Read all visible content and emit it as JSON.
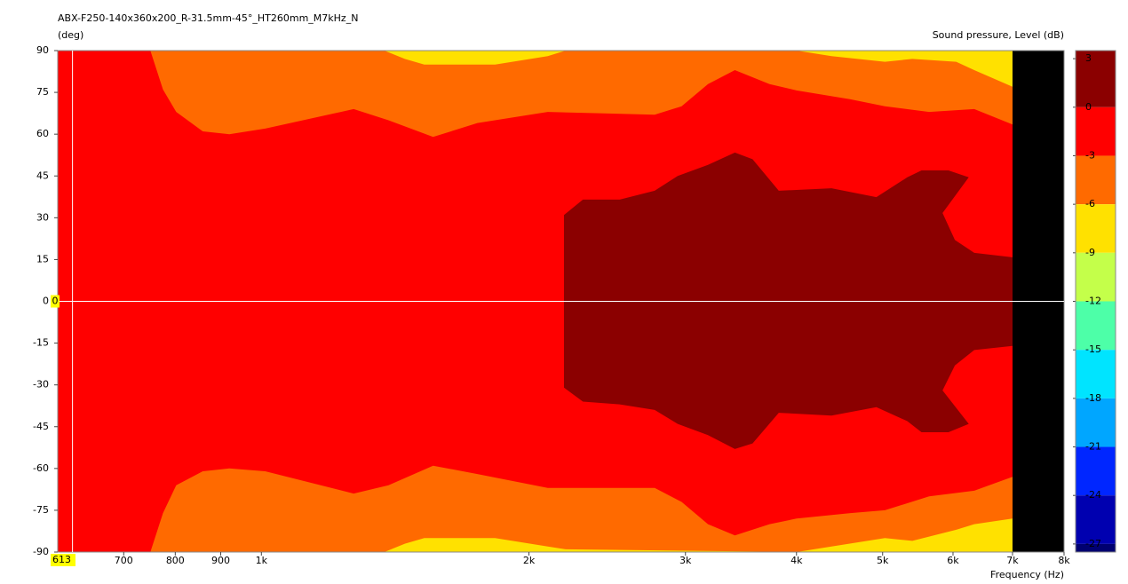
{
  "chart_data": {
    "type": "contour",
    "title": "ABX-F250-140x360x200_R-31.5mm-45°_HT260mm_M7kHz_N",
    "y_label": "(deg)",
    "x_label": "Frequency  (Hz)",
    "log_x": true,
    "xlim": [
      590,
      8000
    ],
    "xticks": [
      700,
      800,
      900,
      {
        "value": 1000,
        "label": "1k"
      },
      {
        "value": 2000,
        "label": "2k"
      },
      {
        "value": 3000,
        "label": "3k"
      },
      {
        "value": 4000,
        "label": "4k"
      },
      {
        "value": 5000,
        "label": "5k"
      },
      {
        "value": 6000,
        "label": "6k"
      },
      {
        "value": 7000,
        "label": "7k"
      },
      {
        "value": 8000,
        "label": "8k"
      }
    ],
    "ylim": [
      -90,
      90
    ],
    "yticks": [
      90,
      75,
      60,
      45,
      30,
      15,
      0,
      -15,
      -30,
      -45,
      -60,
      -75,
      -90
    ],
    "cursor": {
      "x": 613,
      "y": 0
    },
    "colorbar": {
      "title": "Sound pressure, Level  (dB)",
      "clim": [
        -27.5,
        3.5
      ],
      "ticks": [
        3,
        0,
        -3,
        -6,
        -9,
        -12,
        -15,
        -18,
        -21,
        -24,
        -27
      ],
      "colors": [
        "#8b0000",
        "#ff0000",
        "#ff6a00",
        "#ffe100",
        "#c4ff4a",
        "#4dffa8",
        "#00e4ff",
        "#00a6ff",
        "#0026ff",
        "#0000b0",
        "#000070"
      ]
    },
    "contours": [
      {
        "level": -6,
        "x": [
          590,
          1375,
          1450,
          1525,
          1832,
          2100,
          2200,
          4000,
          4380,
          5030,
          5400,
          6050,
          6340,
          7000
        ],
        "y_upper": [
          90,
          90,
          87,
          85,
          85,
          88,
          90,
          90,
          88,
          86,
          87,
          86,
          83,
          77
        ],
        "y_lower": [
          -90,
          -90,
          -87,
          -85,
          -85,
          -88,
          -89,
          -90,
          -88,
          -85,
          -86,
          -82,
          -80,
          -78
        ]
      },
      {
        "level": -3,
        "x": [
          590,
          750,
          775,
          802,
          859,
          920,
          1010,
          1270,
          1390,
          1560,
          1750,
          2100,
          2770,
          2970,
          3180,
          3410,
          3730,
          4000,
          4600,
          5030,
          5640,
          6340,
          7000
        ],
        "y_upper": [
          90,
          90,
          76,
          68,
          61,
          60,
          62,
          69,
          65,
          59,
          64,
          68,
          67,
          70,
          78,
          83,
          78,
          75.7,
          72.5,
          70,
          68,
          69,
          63.5
        ],
        "y_lower": [
          -90,
          -90,
          -76,
          -66,
          -61,
          -60,
          -61,
          -69,
          -66,
          -59,
          -62,
          -67,
          -67,
          -72,
          -80,
          -84,
          -80,
          -78,
          -76,
          -75,
          -70,
          -68,
          -63
        ]
      },
      {
        "level": 0,
        "x": [
          2190,
          2300,
          2530,
          2770,
          2940,
          3180,
          3410,
          3570,
          3820,
          4380,
          4920,
          5330,
          5530,
          5930,
          6250,
          5840,
          6030,
          6340,
          7000
        ],
        "y_upper": [
          31,
          36.5,
          36.5,
          39.7,
          45,
          49,
          53.4,
          51,
          39.7,
          40.6,
          37.4,
          44.5,
          47,
          47,
          44.5,
          31.7,
          22,
          17.4,
          15.8
        ],
        "y_lower": [
          -31,
          -36,
          -37,
          -39,
          -44,
          -48,
          -53,
          -51,
          -40,
          -41,
          -38,
          -43,
          -47,
          -47,
          -44,
          -32,
          -23,
          -17.5,
          -16
        ]
      }
    ]
  }
}
